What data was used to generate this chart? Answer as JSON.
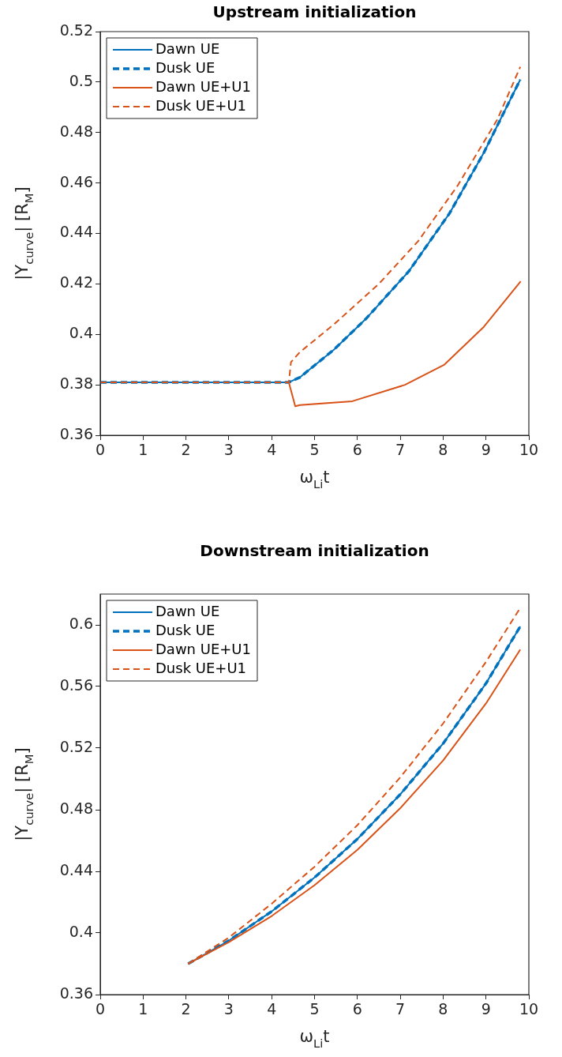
{
  "chart_data": [
    {
      "type": "line",
      "title": "Upstream initialization",
      "xlabel": "ω$_{Li}$t",
      "ylabel": "|Y$_{curve}$| [R$_{M}$]",
      "xlim": [
        0,
        10
      ],
      "xticks": [
        0,
        1,
        2,
        3,
        4,
        5,
        6,
        7,
        8,
        9,
        10
      ],
      "ylim": [
        0.36,
        0.52
      ],
      "yticks": [
        0.36,
        0.38,
        0.4,
        0.42,
        0.44,
        0.46,
        0.48,
        0.5,
        0.52
      ],
      "legend": "top left",
      "series": [
        {
          "name": "Dawn UE",
          "color": "#0072bd",
          "line_style": "solid",
          "x": [
            0,
            1,
            2,
            3,
            4,
            4.4,
            4.66,
            5.455,
            6.19,
            7.2,
            8.15,
            8.95,
            9.8
          ],
          "values": [
            0.381,
            0.381,
            0.381,
            0.381,
            0.381,
            0.381,
            0.383,
            0.394,
            0.406,
            0.425,
            0.448,
            0.472,
            0.501
          ]
        },
        {
          "name": "Dusk UE",
          "color": "#0072bd",
          "line_style": "dashed",
          "x": [
            0,
            1,
            2,
            3,
            4,
            4.4,
            4.66,
            5.455,
            6.19,
            7.2,
            8.15,
            8.95,
            9.8
          ],
          "values": [
            0.381,
            0.381,
            0.381,
            0.381,
            0.381,
            0.381,
            0.383,
            0.394,
            0.406,
            0.425,
            0.448,
            0.472,
            0.501
          ]
        },
        {
          "name": "Dawn UE+U1",
          "color": "#d95319",
          "line_style": "solid",
          "x": [
            4.4,
            4.55,
            4.66,
            5.88,
            7.11,
            8.03,
            8.95,
            9.81
          ],
          "values": [
            0.381,
            0.3715,
            0.372,
            0.3735,
            0.38,
            0.388,
            0.403,
            0.421
          ]
        },
        {
          "name": "Dusk UE+U1",
          "color": "#d95319",
          "line_style": "dashed",
          "x": [
            0,
            1,
            2,
            3,
            4,
            4.4,
            4.45,
            4.66,
            5.455,
            6.5,
            7.42,
            8.34,
            9.26,
            9.8
          ],
          "values": [
            0.381,
            0.381,
            0.381,
            0.381,
            0.381,
            0.381,
            0.389,
            0.393,
            0.404,
            0.42,
            0.437,
            0.459,
            0.485,
            0.506
          ]
        }
      ]
    },
    {
      "type": "line",
      "title": "Downstream initialization",
      "xlabel": "ω$_{Li}$t",
      "ylabel": "|Y$_{curve}$| [R$_{M}$]",
      "xlim": [
        0,
        10
      ],
      "xticks": [
        0,
        1,
        2,
        3,
        4,
        5,
        6,
        7,
        8,
        9,
        10
      ],
      "ylim": [
        0.36,
        0.62
      ],
      "yticks": [
        0.36,
        0.4,
        0.44,
        0.48,
        0.52,
        0.56,
        0.6
      ],
      "legend": "top left",
      "series": [
        {
          "name": "Dawn UE",
          "color": "#0072bd",
          "line_style": "solid",
          "x": [
            2.05,
            3,
            4,
            5,
            6,
            7,
            8,
            9,
            9.8
          ],
          "values": [
            0.38,
            0.395,
            0.414,
            0.436,
            0.461,
            0.49,
            0.523,
            0.562,
            0.599
          ]
        },
        {
          "name": "Dusk UE",
          "color": "#0072bd",
          "line_style": "dashed",
          "x": [
            2.05,
            3,
            4,
            5,
            6,
            7,
            8,
            9,
            9.8
          ],
          "values": [
            0.38,
            0.395,
            0.414,
            0.436,
            0.461,
            0.49,
            0.523,
            0.562,
            0.599
          ]
        },
        {
          "name": "Dawn UE+U1",
          "color": "#d95319",
          "line_style": "solid",
          "x": [
            2.05,
            3,
            4,
            5,
            6,
            7,
            8,
            9,
            9.8
          ],
          "values": [
            0.38,
            0.394,
            0.411,
            0.431,
            0.454,
            0.481,
            0.512,
            0.549,
            0.584
          ]
        },
        {
          "name": "Dusk UE+U1",
          "color": "#d95319",
          "line_style": "dashed",
          "x": [
            2.05,
            3,
            4,
            5,
            6,
            7,
            8,
            9,
            9.8
          ],
          "values": [
            0.38,
            0.397,
            0.419,
            0.443,
            0.47,
            0.501,
            0.536,
            0.576,
            0.611
          ]
        }
      ]
    }
  ]
}
